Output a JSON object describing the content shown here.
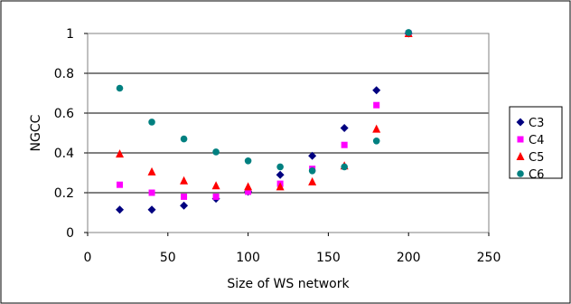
{
  "chart_data": {
    "type": "scatter",
    "xlabel": "Size of WS network",
    "ylabel": "NGCC",
    "xlim": [
      0,
      250
    ],
    "ylim": [
      0,
      1
    ],
    "xticks": [
      0,
      50,
      100,
      150,
      200,
      250
    ],
    "yticks": [
      0,
      0.2,
      0.4,
      0.6,
      0.8,
      1
    ],
    "xtick_labels": [
      "0",
      "50",
      "100",
      "150",
      "200",
      "250"
    ],
    "ytick_labels": [
      "0",
      "0.2",
      "0.4",
      "0.6",
      "0.8",
      "1"
    ],
    "grid": "horizontal",
    "legend_position": "right",
    "x": [
      20,
      40,
      60,
      80,
      100,
      120,
      140,
      160,
      180,
      200
    ],
    "series": [
      {
        "name": "C3",
        "color": "#000080",
        "marker": "diamond",
        "values": [
          0.115,
          0.115,
          0.135,
          0.17,
          0.205,
          0.29,
          0.385,
          0.525,
          0.715,
          1.0
        ]
      },
      {
        "name": "C4",
        "color": "#ff00ff",
        "marker": "square",
        "values": [
          0.24,
          0.2,
          0.18,
          0.18,
          0.205,
          0.245,
          0.32,
          0.44,
          0.64,
          1.0
        ]
      },
      {
        "name": "C5",
        "color": "#ff0000",
        "marker": "triangle",
        "values": [
          0.395,
          0.305,
          0.26,
          0.235,
          0.23,
          0.23,
          0.255,
          0.335,
          0.52,
          1.0
        ]
      },
      {
        "name": "C6",
        "color": "#008080",
        "marker": "circle",
        "values": [
          0.725,
          0.555,
          0.47,
          0.405,
          0.36,
          0.33,
          0.31,
          0.33,
          0.46,
          1.005
        ]
      }
    ]
  }
}
